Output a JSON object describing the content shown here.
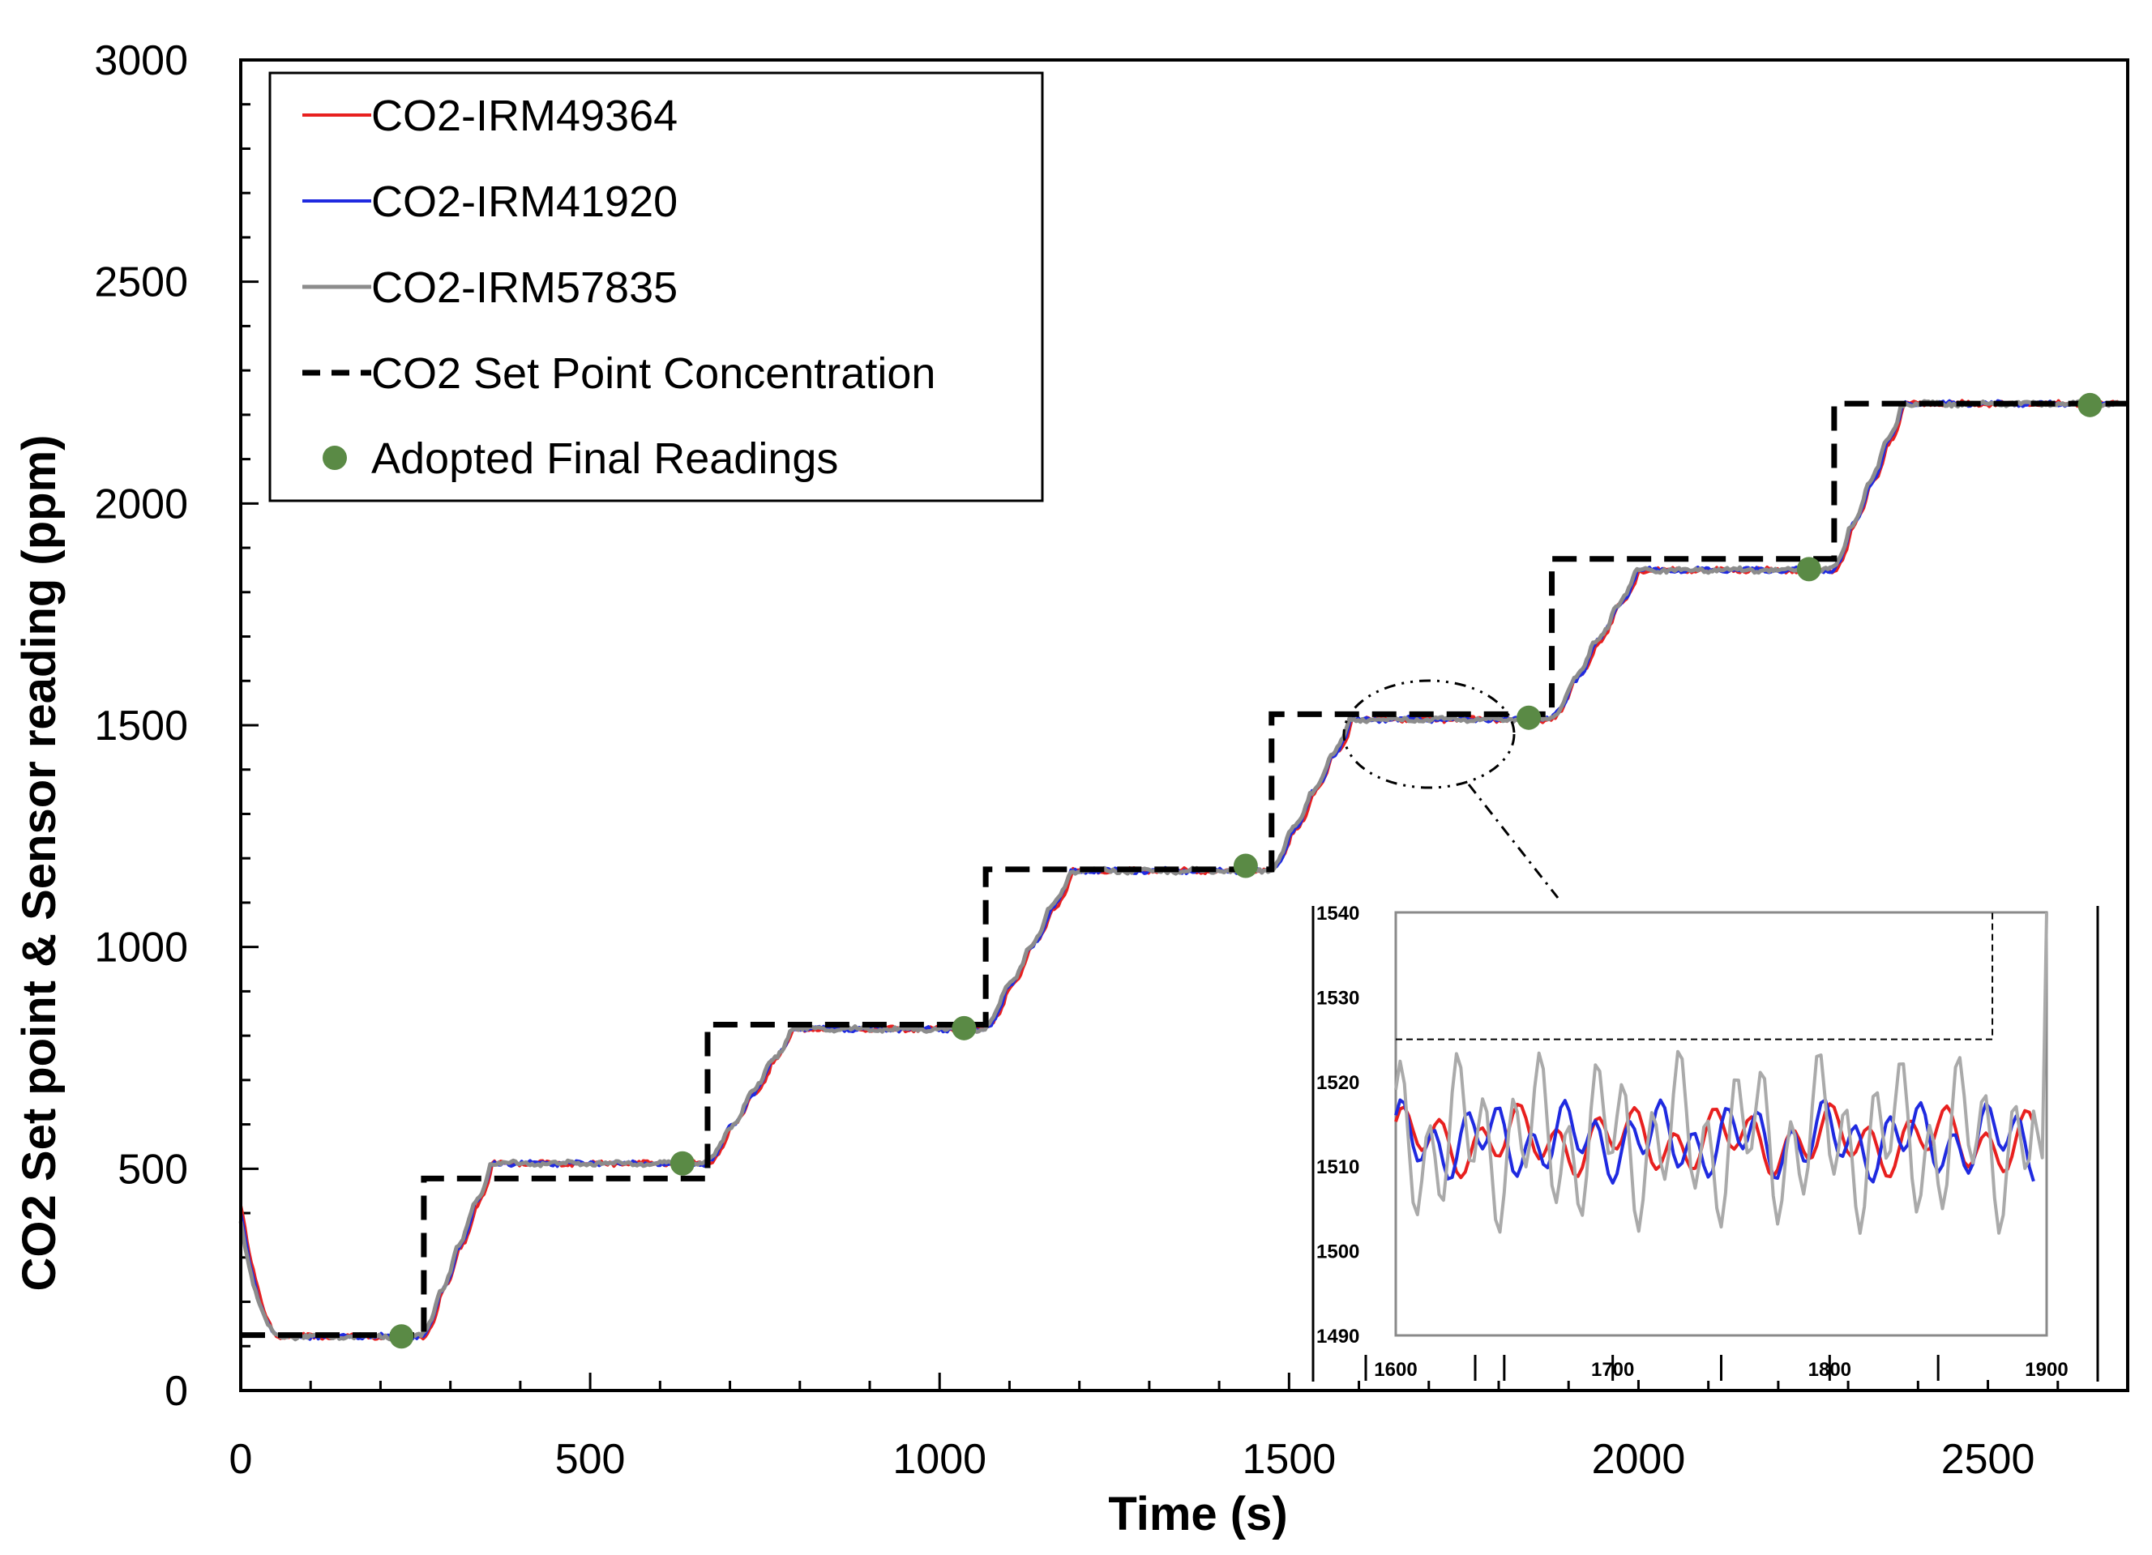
{
  "chart_data": {
    "type": "line",
    "xlabel": "Time (s)",
    "ylabel": "CO2 Set point  & Sensor reading (ppm)",
    "xlim": [
      0,
      2700
    ],
    "ylim": [
      0,
      3000
    ],
    "xticks": [
      "0",
      "500",
      "1000",
      "1500",
      "2000",
      "2500"
    ],
    "yticks": [
      "0",
      "500",
      "1000",
      "1500",
      "2000",
      "2500",
      "3000"
    ],
    "legend_position": "top-left",
    "colors": {
      "red": "#e8201f",
      "blue": "#1f2ae0",
      "gray": "#8c8c8c",
      "setpoint": "#000000",
      "marker": "#5a8a45",
      "inset_gray": "#aaaaaa"
    },
    "series": [
      {
        "name": "CO2-IRM49364",
        "color": "#e8201f"
      },
      {
        "name": "CO2-IRM41920",
        "color": "#1f2ae0"
      },
      {
        "name": "CO2-IRM57835",
        "color": "#8c8c8c"
      }
    ],
    "setpoint": {
      "name": "CO2 Set Point Concentration",
      "steps": [
        {
          "start": 0,
          "end": 262,
          "value": 125
        },
        {
          "start": 262,
          "end": 668,
          "value": 478
        },
        {
          "start": 668,
          "end": 1066,
          "value": 825
        },
        {
          "start": 1066,
          "end": 1475,
          "value": 1175
        },
        {
          "start": 1475,
          "end": 1876,
          "value": 1525
        },
        {
          "start": 1876,
          "end": 2280,
          "value": 1875
        },
        {
          "start": 2280,
          "end": 2700,
          "value": 2225
        }
      ]
    },
    "sensor_plateaus": [
      {
        "t_from": 60,
        "t_to": 262,
        "value": 122
      },
      {
        "t_from": 360,
        "t_to": 668,
        "value": 512
      },
      {
        "t_from": 790,
        "t_to": 1066,
        "value": 815
      },
      {
        "t_from": 1190,
        "t_to": 1475,
        "value": 1172
      },
      {
        "t_from": 1590,
        "t_to": 1876,
        "value": 1513
      },
      {
        "t_from": 2000,
        "t_to": 2280,
        "value": 1850
      },
      {
        "t_from": 2380,
        "t_to": 2700,
        "value": 2225
      }
    ],
    "adopted_final_readings": {
      "name": "Adopted Final Readings",
      "points": [
        {
          "x": 230,
          "y": 122
        },
        {
          "x": 632,
          "y": 512
        },
        {
          "x": 1035,
          "y": 817
        },
        {
          "x": 1438,
          "y": 1183
        },
        {
          "x": 1843,
          "y": 1517
        },
        {
          "x": 2244,
          "y": 1852
        },
        {
          "x": 2646,
          "y": 2222
        }
      ]
    },
    "inset": {
      "xlim": [
        1600,
        1900
      ],
      "ylim": [
        1490,
        1540
      ],
      "xticks": [
        "1600",
        "1700",
        "1800",
        "1900"
      ],
      "yticks": [
        "1490",
        "1500",
        "1510",
        "1520",
        "1530",
        "1540"
      ],
      "setpoint_value": 1525,
      "setpoint_step_x": 1875
    }
  }
}
